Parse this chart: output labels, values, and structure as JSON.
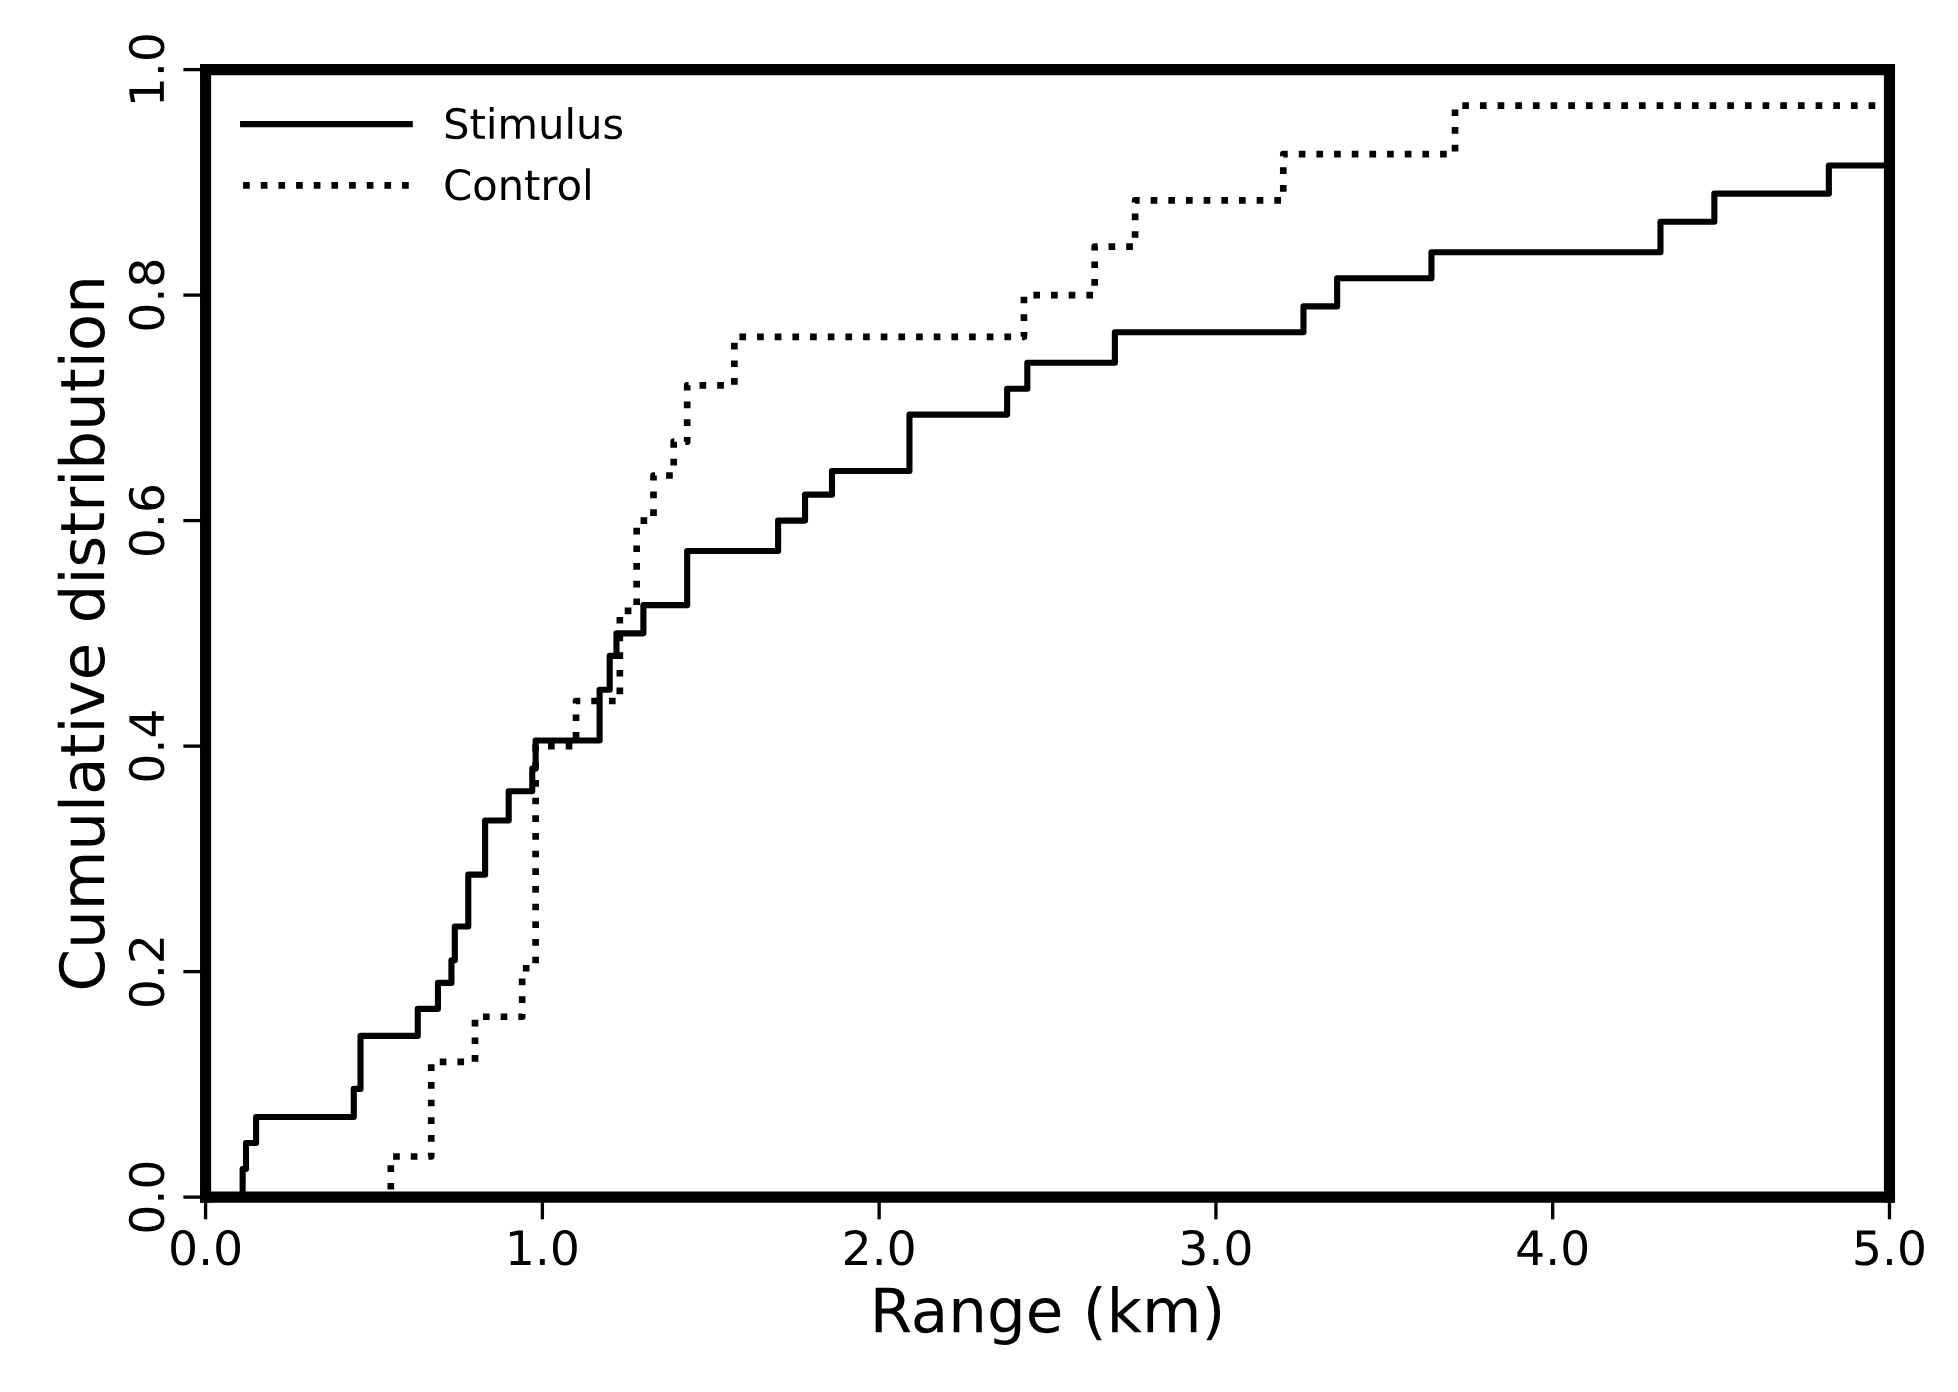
{
  "chart_data": {
    "type": "step",
    "xlabel": "Range (km)",
    "ylabel": "Cumulative distribution",
    "xlim": [
      0,
      5
    ],
    "ylim": [
      0,
      1
    ],
    "xticks": [
      {
        "value": 0,
        "label": "0.0"
      },
      {
        "value": 1,
        "label": "1.0"
      },
      {
        "value": 2,
        "label": "2.0"
      },
      {
        "value": 3,
        "label": "3.0"
      },
      {
        "value": 4,
        "label": "4.0"
      },
      {
        "value": 5,
        "label": "5.0"
      }
    ],
    "yticks": [
      {
        "value": 0,
        "label": "0.0"
      },
      {
        "value": 0.2,
        "label": "0.2"
      },
      {
        "value": 0.4,
        "label": "0.4"
      },
      {
        "value": 0.6,
        "label": "0.6"
      },
      {
        "value": 0.8,
        "label": "0.8"
      },
      {
        "value": 1,
        "label": "1.0"
      }
    ],
    "grid": false,
    "legend": "top left",
    "series": [
      {
        "name": "Stimulus",
        "color": "#000000",
        "line_style": "solid",
        "x": [
          0.08,
          0.11,
          0.12,
          0.15,
          0.44,
          0.46,
          0.63,
          0.69,
          0.73,
          0.74,
          0.78,
          0.83,
          0.9,
          0.97,
          0.98,
          1.17,
          1.2,
          1.22,
          1.3,
          1.43,
          1.7,
          1.78,
          1.86,
          2.09,
          2.38,
          2.44,
          2.7,
          3.26,
          3.36,
          3.64,
          4.32,
          4.48,
          4.82,
          5.0
        ],
        "values": [
          0,
          0.025,
          0.048,
          0.071,
          0.096,
          0.143,
          0.167,
          0.19,
          0.21,
          0.24,
          0.286,
          0.334,
          0.36,
          0.38,
          0.405,
          0.45,
          0.48,
          0.5,
          0.525,
          0.573,
          0.6,
          0.623,
          0.644,
          0.694,
          0.717,
          0.74,
          0.767,
          0.79,
          0.815,
          0.838,
          0.865,
          0.89,
          0.915,
          0.915
        ]
      },
      {
        "name": "Control",
        "color": "#000000",
        "line_style": "dotted",
        "x": [
          0.52,
          0.55,
          0.67,
          0.8,
          0.94,
          0.98,
          1.1,
          1.23,
          1.28,
          1.33,
          1.39,
          1.43,
          1.57,
          2.43,
          2.64,
          2.76,
          3.2,
          3.71,
          5.0
        ],
        "values": [
          0,
          0.036,
          0.12,
          0.16,
          0.203,
          0.4,
          0.44,
          0.52,
          0.6,
          0.64,
          0.67,
          0.72,
          0.763,
          0.8,
          0.843,
          0.884,
          0.925,
          0.968,
          0.968
        ]
      }
    ]
  }
}
